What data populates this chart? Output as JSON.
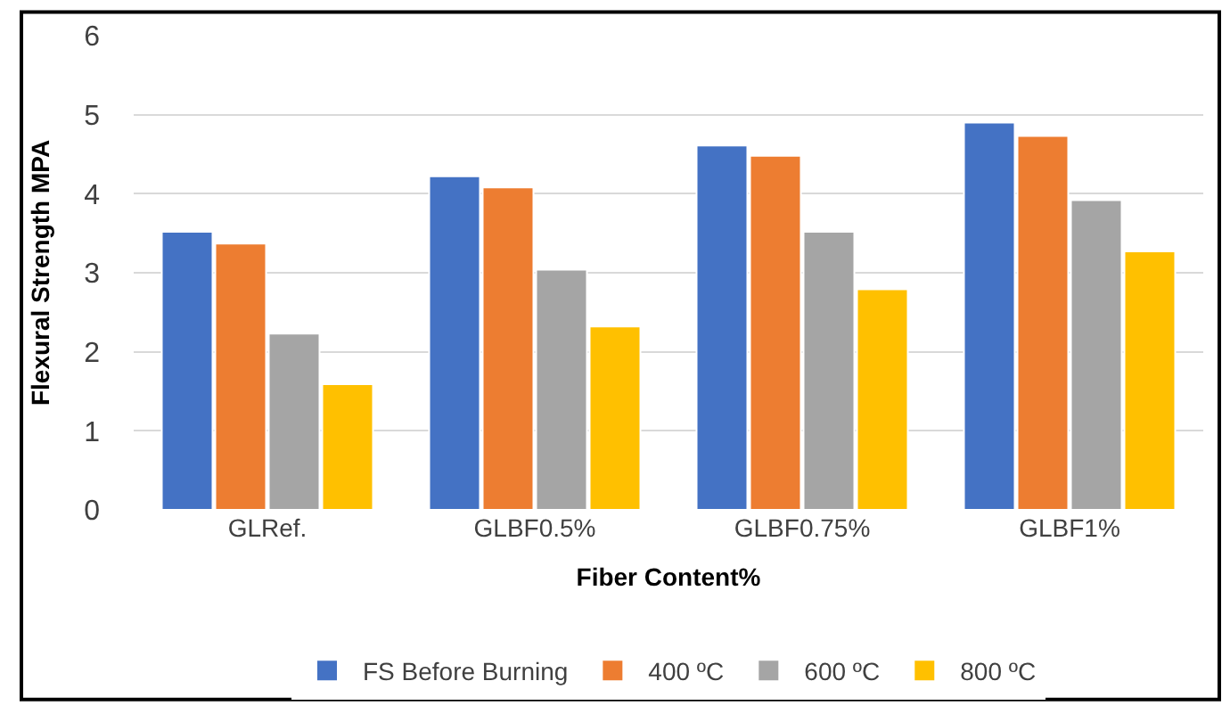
{
  "chart_data": {
    "type": "bar",
    "xlabel": "Fiber Content%",
    "ylabel": "Flexural Strength MPA",
    "categories": [
      "GLRef.",
      "GLBF0.5%",
      "GLBF0.75%",
      "GLBF1%"
    ],
    "series": [
      {
        "name": "FS Before Burning",
        "color": "#4472c4",
        "values": [
          3.52,
          4.22,
          4.61,
          4.9
        ]
      },
      {
        "name": "400 ºC",
        "color": "#ed7d31",
        "values": [
          3.37,
          4.08,
          4.48,
          4.73
        ]
      },
      {
        "name": "600 ºC",
        "color": "#a5a5a5",
        "values": [
          2.23,
          3.04,
          3.52,
          3.92
        ]
      },
      {
        "name": "800 ºC",
        "color": "#ffc000",
        "values": [
          1.59,
          2.32,
          2.79,
          3.27
        ]
      }
    ],
    "ylim": [
      0,
      6
    ],
    "yticks": [
      0,
      1,
      2,
      3,
      4,
      5,
      6
    ],
    "grid": "y",
    "legend": "bottom"
  }
}
